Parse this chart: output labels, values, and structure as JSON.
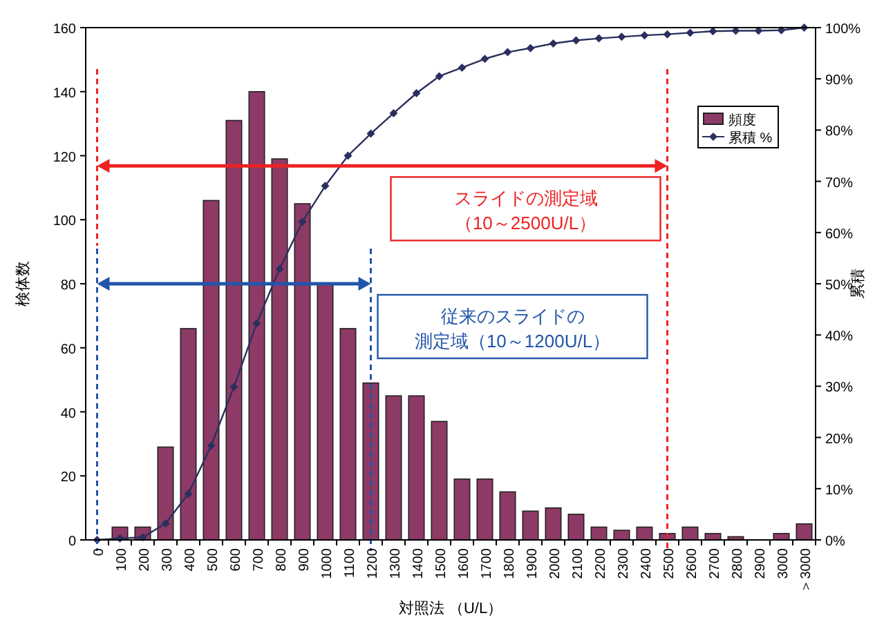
{
  "chart_data": {
    "type": "bar",
    "xlabel": "対照法 （U/L）",
    "ylabel": "検体数",
    "y2label": "累積",
    "categories": [
      "0",
      "100",
      "200",
      "300",
      "400",
      "500",
      "600",
      "700",
      "800",
      "900",
      "1000",
      "1100",
      "1200",
      "1300",
      "1400",
      "1500",
      "1600",
      "1700",
      "1800",
      "1900",
      "2000",
      "2100",
      "2200",
      "2300",
      "2400",
      "2500",
      "2600",
      "2700",
      "2800",
      "2900",
      "3000",
      "＞3000"
    ],
    "series": [
      {
        "name": "頻度",
        "type": "bar",
        "color": "#8e3a66",
        "values": [
          0,
          4,
          4,
          29,
          66,
          106,
          131,
          140,
          119,
          105,
          80,
          66,
          49,
          45,
          45,
          37,
          19,
          19,
          15,
          9,
          10,
          8,
          4,
          3,
          4,
          2,
          4,
          2,
          1,
          0,
          2,
          5
        ]
      },
      {
        "name": "累積 %",
        "type": "line",
        "axis": "y2",
        "color": "#2b2f5e",
        "marker": "diamond",
        "values": [
          0,
          0.3,
          0.5,
          3.2,
          9.0,
          18.4,
          29.9,
          42.3,
          52.9,
          62.1,
          69.1,
          75.0,
          79.3,
          83.3,
          87.2,
          90.5,
          92.2,
          93.9,
          95.2,
          96.0,
          96.9,
          97.5,
          97.9,
          98.2,
          98.5,
          98.7,
          99.0,
          99.3,
          99.4,
          99.4,
          99.5,
          100
        ]
      }
    ],
    "ylim": [
      0,
      160
    ],
    "yticks": [
      0,
      20,
      40,
      60,
      80,
      100,
      120,
      140,
      160
    ],
    "y2lim": [
      0,
      100
    ],
    "y2ticks": [
      {
        "value": 0,
        "label": "0%"
      },
      {
        "value": 10,
        "label": "10%"
      },
      {
        "value": 20,
        "label": "20%"
      },
      {
        "value": 30,
        "label": "30%"
      },
      {
        "value": 40,
        "label": "40%"
      },
      {
        "value": 50,
        "label": "50%"
      },
      {
        "value": 60,
        "label": "60%"
      },
      {
        "value": 70,
        "label": "70%"
      },
      {
        "value": 80,
        "label": "80%"
      },
      {
        "value": 90,
        "label": "90%"
      },
      {
        "value": 100,
        "label": "100%"
      }
    ],
    "ref_lines": [
      {
        "axis": "x",
        "value": "0",
        "color": "#ee2222",
        "line_style": "dashed"
      },
      {
        "axis": "x",
        "value": "2500",
        "color": "#ee2222",
        "line_style": "dashed"
      },
      {
        "axis": "x",
        "value": "0",
        "color": "#2255aa",
        "line_style": "dashed"
      },
      {
        "axis": "x",
        "value": "1200",
        "color": "#2255aa",
        "line_style": "dashed"
      }
    ],
    "annotations": [
      "スライドの測定域",
      "（10～2500U/L）",
      "従来のスライドの",
      "測定域（10～1200U/L）"
    ],
    "grid": false,
    "legend": "top right"
  }
}
